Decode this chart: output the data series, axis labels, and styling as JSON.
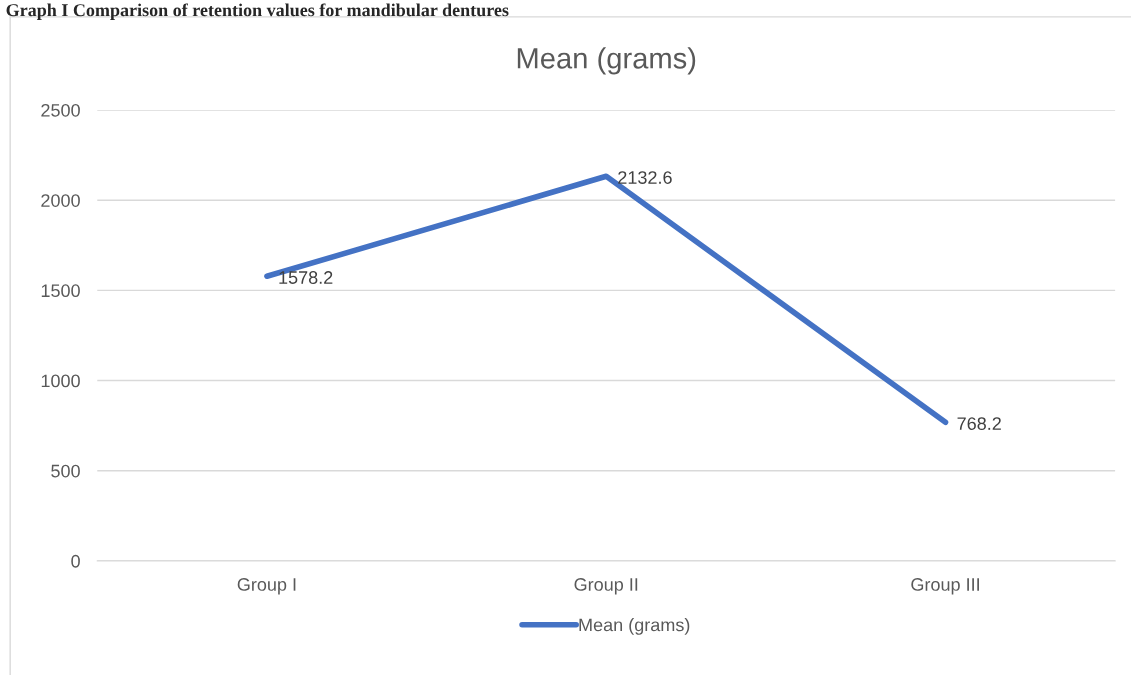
{
  "chart_data": {
    "type": "line",
    "title": "Mean (grams)",
    "annotations": [
      "Graph I Comparison of retention values for mandibular dentures"
    ],
    "categories": [
      "Group I",
      "Group II",
      "Group III"
    ],
    "series": [
      {
        "name": "Mean (grams)",
        "color": "#4472c4",
        "values": [
          1578.2,
          2132.6,
          768.2
        ]
      }
    ],
    "ylim": [
      0,
      2500
    ],
    "yticks": [
      0,
      500,
      1000,
      1500,
      2000,
      2500
    ],
    "grid": "y",
    "legend": "bottom",
    "data_labels": true,
    "marker": "none",
    "line_style": "solid"
  }
}
